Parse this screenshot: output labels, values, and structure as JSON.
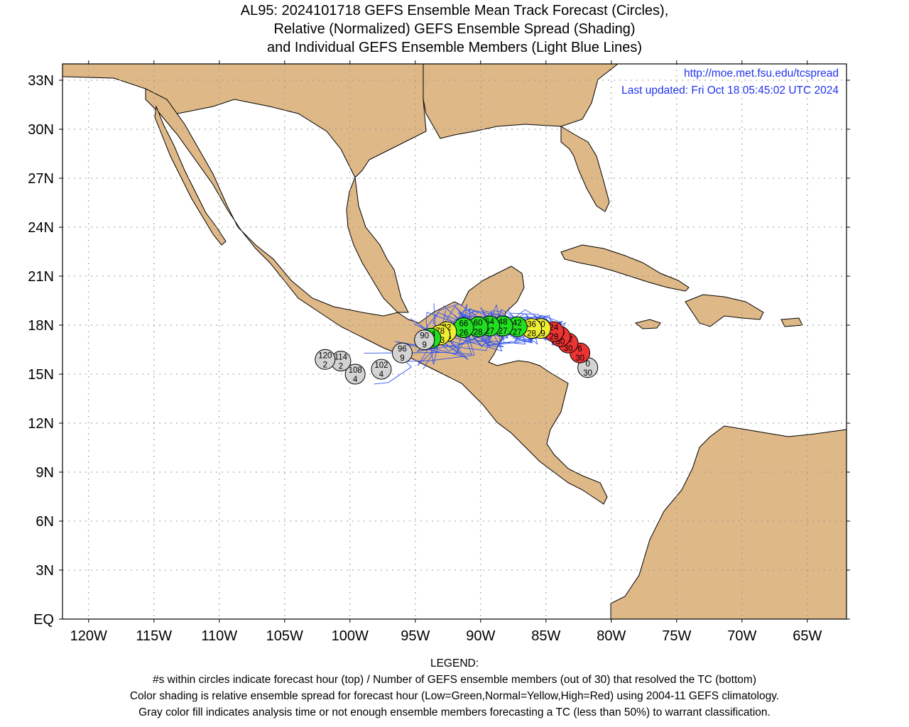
{
  "title": {
    "line1": "AL95: 2024101718 GEFS Ensemble Mean Track Forecast (Circles),",
    "line2": "Relative (Normalized) GEFS Ensemble Spread (Shading)",
    "line3": "and Individual GEFS Ensemble Members (Light Blue Lines)"
  },
  "info": {
    "url": "http://moe.met.fsu.edu/tcspread",
    "updated": "Last updated: Fri Oct 18 05:45:02 UTC 2024"
  },
  "axes": {
    "lat_labels": [
      {
        "lat": 33,
        "text": "33N"
      },
      {
        "lat": 30,
        "text": "30N"
      },
      {
        "lat": 27,
        "text": "27N"
      },
      {
        "lat": 24,
        "text": "24N"
      },
      {
        "lat": 21,
        "text": "21N"
      },
      {
        "lat": 18,
        "text": "18N"
      },
      {
        "lat": 15,
        "text": "15N"
      },
      {
        "lat": 12,
        "text": "12N"
      },
      {
        "lat": 9,
        "text": "9N"
      },
      {
        "lat": 6,
        "text": "6N"
      },
      {
        "lat": 3,
        "text": "3N"
      },
      {
        "lat": 0,
        "text": "EQ"
      }
    ],
    "lon_labels": [
      {
        "lon": -120,
        "text": "120W"
      },
      {
        "lon": -115,
        "text": "115W"
      },
      {
        "lon": -110,
        "text": "110W"
      },
      {
        "lon": -105,
        "text": "105W"
      },
      {
        "lon": -100,
        "text": "100W"
      },
      {
        "lon": -95,
        "text": "95W"
      },
      {
        "lon": -90,
        "text": "90W"
      },
      {
        "lon": -85,
        "text": "85W"
      },
      {
        "lon": -80,
        "text": "80W"
      },
      {
        "lon": -75,
        "text": "75W"
      },
      {
        "lon": -70,
        "text": "70W"
      },
      {
        "lon": -65,
        "text": "65W"
      }
    ],
    "lon_range": [
      -122,
      -62
    ],
    "lat_range": [
      0,
      34
    ],
    "grid": true
  },
  "colors": {
    "land": "#deb887",
    "ocean": "#ffffff",
    "track_lines": "#3355ee",
    "spread_low": "#22dd22",
    "spread_normal": "#eeee33",
    "spread_high": "#ee3333",
    "gray_fill": "#d3d3d3"
  },
  "forecast_points": [
    {
      "hour": "0",
      "members": "30",
      "lon": -81.8,
      "lat": 15.4,
      "spread": "gray"
    },
    {
      "hour": "6",
      "members": "30",
      "lon": -82.4,
      "lat": 16.3,
      "spread": "high"
    },
    {
      "hour": "12",
      "members": "30",
      "lon": -83.3,
      "lat": 16.9,
      "spread": "high"
    },
    {
      "hour": "18",
      "members": "30",
      "lon": -83.9,
      "lat": 17.3,
      "spread": "high"
    },
    {
      "hour": "24",
      "members": "29",
      "lon": -84.4,
      "lat": 17.6,
      "spread": "high"
    },
    {
      "hour": "30",
      "members": "29",
      "lon": -85.4,
      "lat": 17.8,
      "spread": "normal"
    },
    {
      "hour": "36",
      "members": "28",
      "lon": -86.1,
      "lat": 17.8,
      "spread": "normal"
    },
    {
      "hour": "42",
      "members": "27",
      "lon": -87.2,
      "lat": 17.9,
      "spread": "low"
    },
    {
      "hour": "48",
      "members": "27",
      "lon": -88.3,
      "lat": 17.95,
      "spread": "low"
    },
    {
      "hour": "54",
      "members": "27",
      "lon": -89.3,
      "lat": 17.95,
      "spread": "low"
    },
    {
      "hour": "60",
      "members": "28",
      "lon": -90.2,
      "lat": 17.9,
      "spread": "low"
    },
    {
      "hour": "66",
      "members": "26",
      "lon": -91.3,
      "lat": 17.85,
      "spread": "low"
    },
    {
      "hour": "72",
      "members": "25",
      "lon": -92.6,
      "lat": 17.6,
      "spread": "normal"
    },
    {
      "hour": "78",
      "members": "23",
      "lon": -93.1,
      "lat": 17.4,
      "spread": "normal"
    },
    {
      "hour": "84",
      "members": "21",
      "lon": -93.8,
      "lat": 17.2,
      "spread": "low"
    },
    {
      "hour": "90",
      "members": "9",
      "lon": -94.3,
      "lat": 17.1,
      "spread": "gray"
    },
    {
      "hour": "96",
      "members": "9",
      "lon": -96.0,
      "lat": 16.3,
      "spread": "gray"
    },
    {
      "hour": "102",
      "members": "4",
      "lon": -97.6,
      "lat": 15.3,
      "spread": "gray"
    },
    {
      "hour": "108",
      "members": "4",
      "lon": -99.6,
      "lat": 15.0,
      "spread": "gray"
    },
    {
      "hour": "114",
      "members": "2",
      "lon": -100.7,
      "lat": 15.8,
      "spread": "gray"
    },
    {
      "hour": "120",
      "members": "2",
      "lon": -101.9,
      "lat": 15.9,
      "spread": "gray"
    }
  ],
  "legend": {
    "heading": "LEGEND:",
    "line1": "#s within circles indicate forecast hour (top) / Number of GEFS ensemble members (out of 30) that resolved the TC (bottom)",
    "line2": "Color shading is relative ensemble spread for forecast hour (Low=Green,Normal=Yellow,High=Red) using 2004-11 GEFS climatology.",
    "line3": "Gray color fill indicates analysis time or not enough ensemble members forecasting a TC (less than 50%) to warrant classification."
  }
}
